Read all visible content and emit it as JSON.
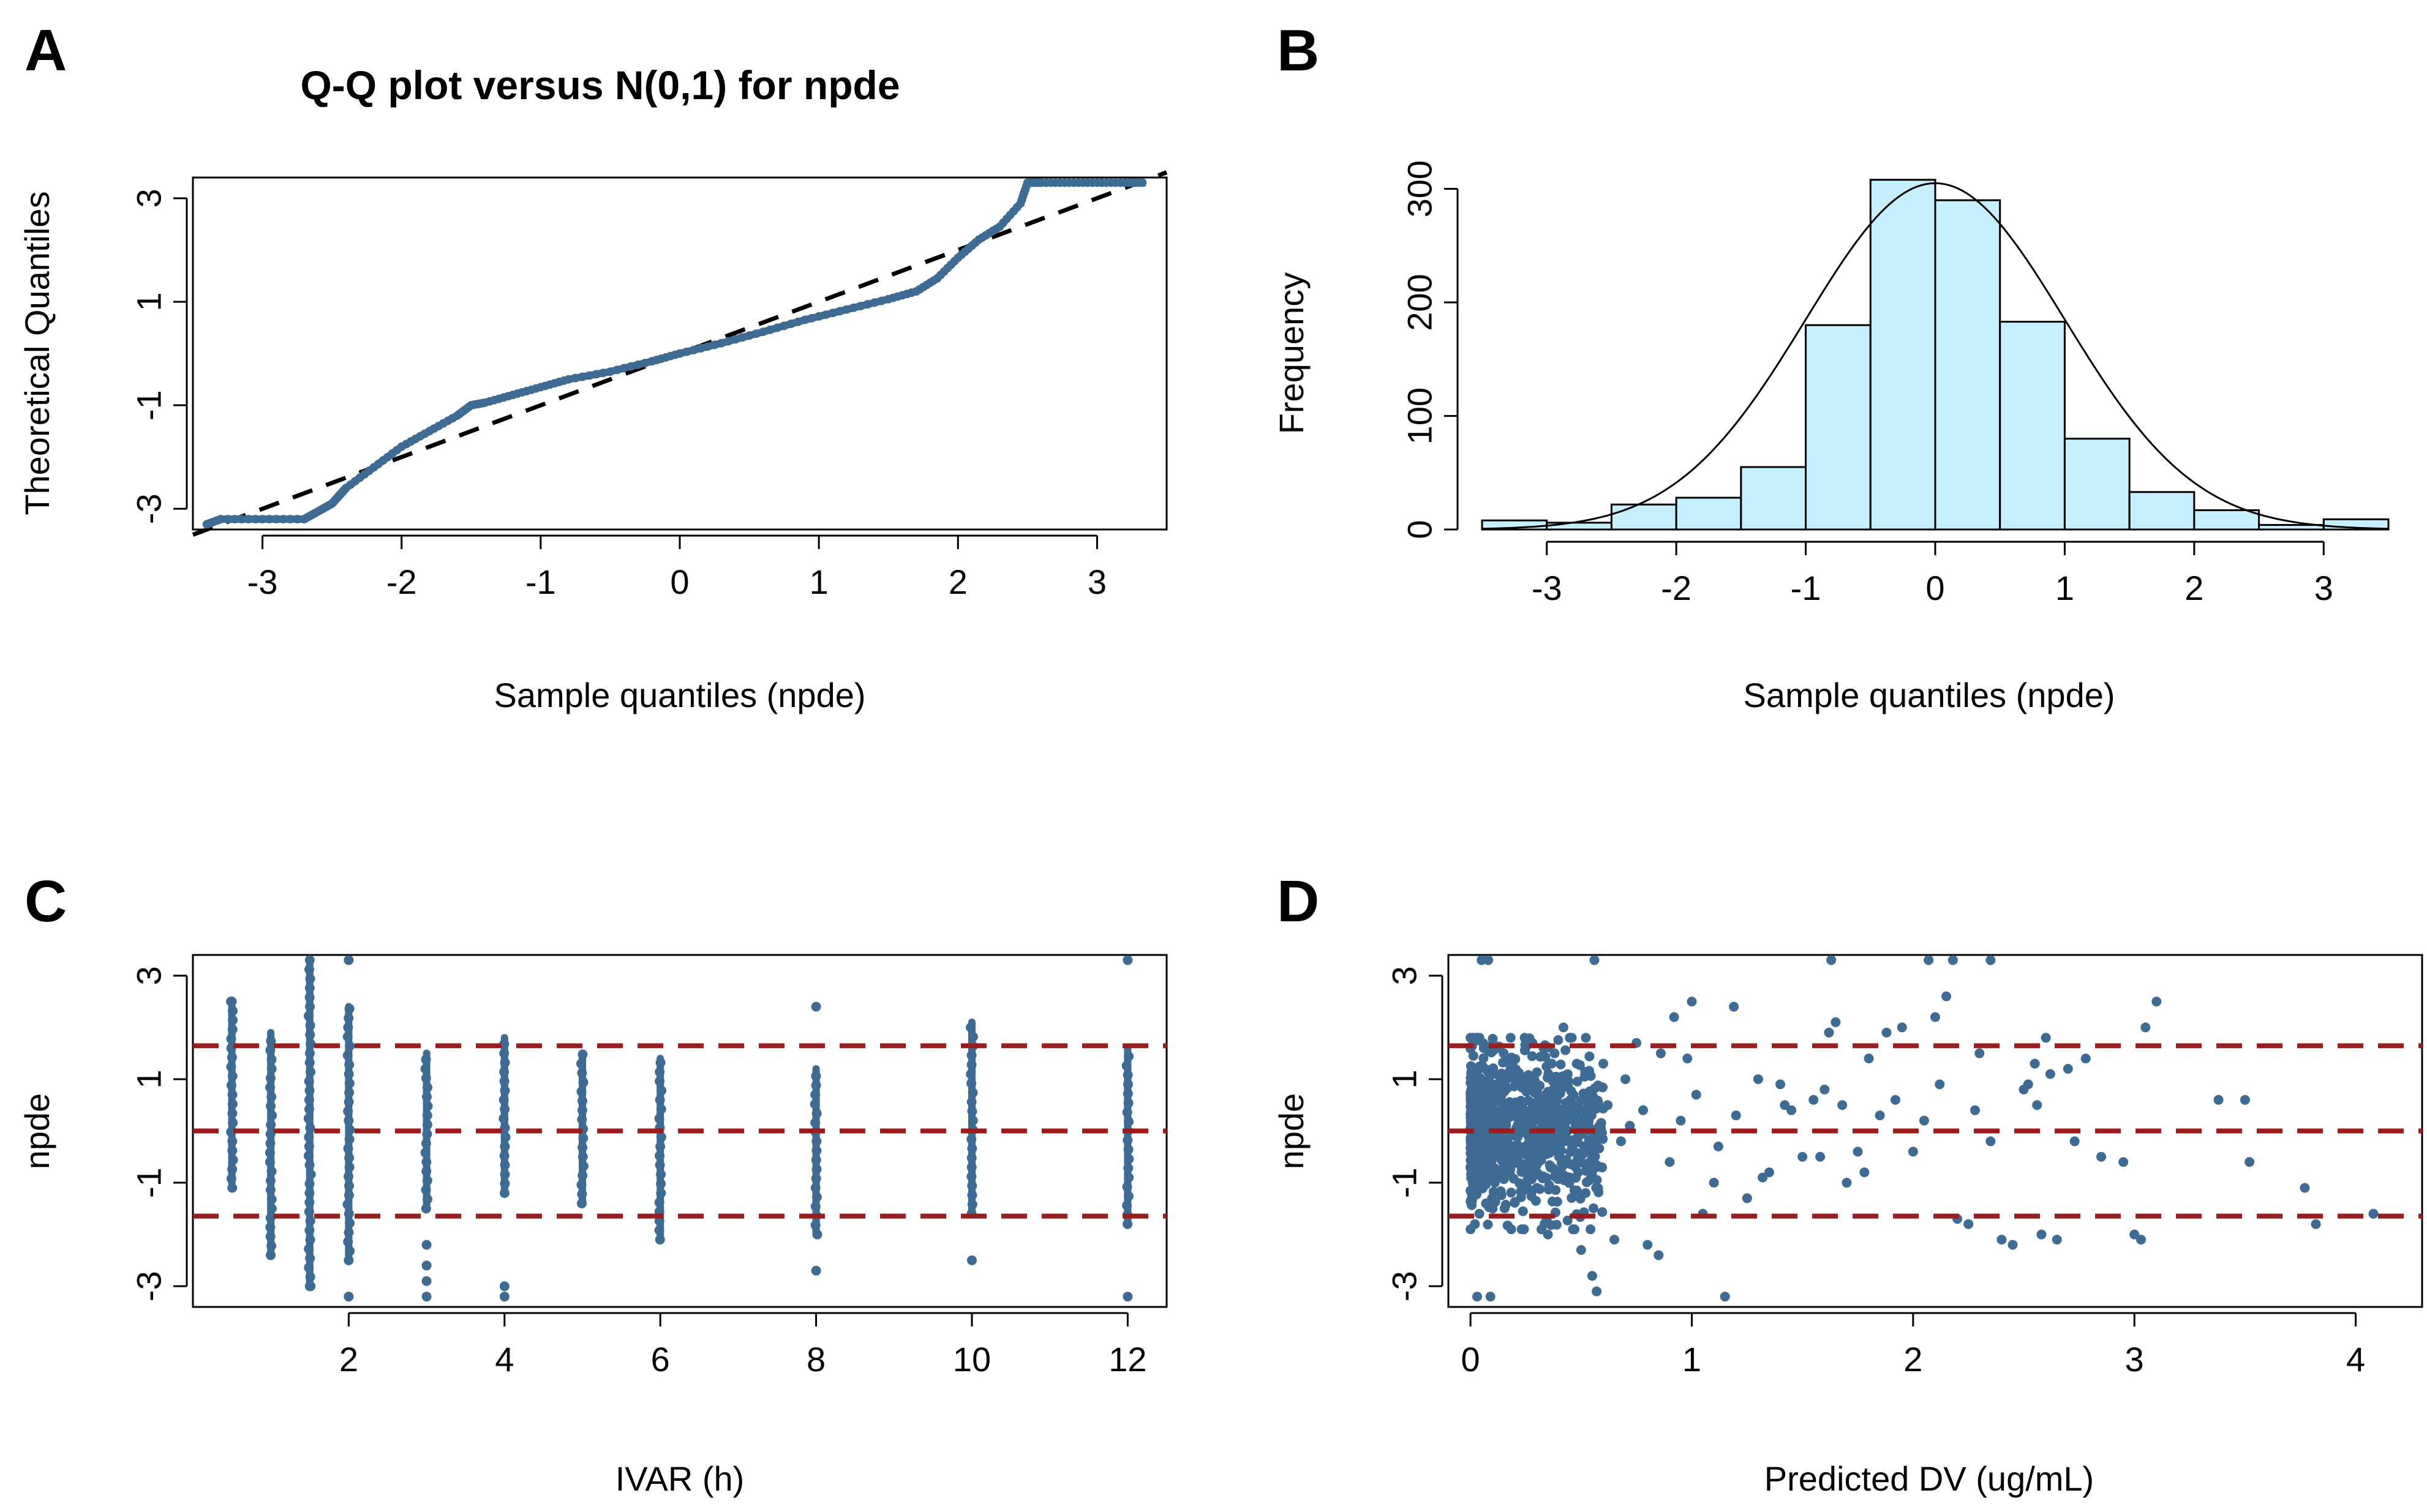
{
  "colors": {
    "points": "#3e6b93",
    "hist_fill": "#c6efff",
    "ref_line": "#9b1c1c",
    "axis": "#000000"
  },
  "chart_data": [
    {
      "id": "A",
      "panel_label": "A",
      "type": "scatter",
      "title": "Q-Q plot versus N(0,1) for  npde",
      "xlabel": "Sample quantiles (npde)",
      "ylabel": "Theoretical Quantiles",
      "xlim": [
        -3.5,
        3.5
      ],
      "ylim": [
        -3.4,
        3.4
      ],
      "xticks": [
        -3,
        -2,
        -1,
        0,
        1,
        2,
        3
      ],
      "yticks": [
        -3,
        -1,
        1,
        3
      ],
      "reference_line": {
        "style": "dashed",
        "from": [
          -3.5,
          -3.5
        ],
        "to": [
          3.5,
          3.5
        ]
      },
      "curve": {
        "x": [
          -3.4,
          -3.3,
          -3.0,
          -2.7,
          -2.6,
          -2.5,
          -2.45,
          -2.4,
          -2.2,
          -2.0,
          -1.8,
          -1.6,
          -1.5,
          -1.4,
          -1.2,
          -1.0,
          -0.8,
          -0.5,
          -0.2,
          0.0,
          0.3,
          0.6,
          0.9,
          1.2,
          1.5,
          1.7,
          1.85,
          2.0,
          2.15,
          2.3,
          2.45,
          2.5,
          2.6,
          2.8,
          3.0,
          3.2,
          3.35
        ],
        "y": [
          -3.3,
          -3.2,
          -3.2,
          -3.2,
          -3.05,
          -2.9,
          -2.75,
          -2.6,
          -2.2,
          -1.8,
          -1.5,
          -1.2,
          -1.0,
          -0.95,
          -0.8,
          -0.65,
          -0.5,
          -0.35,
          -0.15,
          0.0,
          0.2,
          0.42,
          0.65,
          0.85,
          1.05,
          1.2,
          1.45,
          1.85,
          2.2,
          2.45,
          2.9,
          3.3,
          3.3,
          3.3,
          3.3,
          3.3,
          3.3
        ]
      }
    },
    {
      "id": "B",
      "panel_label": "B",
      "type": "bar",
      "title": "",
      "xlabel": "Sample quantiles (npde)",
      "ylabel": "Frequency",
      "xlim": [
        -3.5,
        3.5
      ],
      "ylim": [
        0,
        310
      ],
      "xticks": [
        -3,
        -2,
        -1,
        0,
        1,
        2,
        3
      ],
      "yticks": [
        0,
        100,
        200,
        300
      ],
      "bins": [
        {
          "x0": -3.5,
          "x1": -3.0,
          "count": 8
        },
        {
          "x0": -3.0,
          "x1": -2.5,
          "count": 6
        },
        {
          "x0": -2.5,
          "x1": -2.0,
          "count": 22
        },
        {
          "x0": -2.0,
          "x1": -1.5,
          "count": 28
        },
        {
          "x0": -1.5,
          "x1": -1.0,
          "count": 55
        },
        {
          "x0": -1.0,
          "x1": -0.5,
          "count": 180
        },
        {
          "x0": -0.5,
          "x1": 0.0,
          "count": 308
        },
        {
          "x0": 0.0,
          "x1": 0.5,
          "count": 290
        },
        {
          "x0": 0.5,
          "x1": 1.0,
          "count": 183
        },
        {
          "x0": 1.0,
          "x1": 1.5,
          "count": 80
        },
        {
          "x0": 1.5,
          "x1": 2.0,
          "count": 33
        },
        {
          "x0": 2.0,
          "x1": 2.5,
          "count": 17
        },
        {
          "x0": 2.5,
          "x1": 3.0,
          "count": 4
        },
        {
          "x0": 3.0,
          "x1": 3.5,
          "count": 9
        }
      ],
      "density_curve": {
        "type": "normal",
        "mean": 0,
        "sd": 1,
        "peak": 305
      }
    },
    {
      "id": "C",
      "panel_label": "C",
      "type": "scatter",
      "title": "",
      "xlabel": "IVAR (h)",
      "ylabel": "npde",
      "xlim": [
        0,
        12.5
      ],
      "ylim": [
        -3.4,
        3.4
      ],
      "xticks": [
        2,
        4,
        6,
        8,
        10,
        12
      ],
      "yticks": [
        -3,
        -1,
        1,
        3
      ],
      "hlines": [
        -1.645,
        0,
        1.645
      ],
      "columns": [
        {
          "x": 0.5,
          "min": -1.1,
          "max": 2.5,
          "extra": [
            2.5
          ]
        },
        {
          "x": 1.0,
          "min": -2.4,
          "max": 1.9,
          "extra": []
        },
        {
          "x": 1.5,
          "min": -3.0,
          "max": 3.3,
          "extra": [
            3.3,
            -3.0
          ]
        },
        {
          "x": 2.0,
          "min": -2.5,
          "max": 2.4,
          "extra": [
            3.3,
            -3.2
          ]
        },
        {
          "x": 3.0,
          "min": -1.5,
          "max": 1.5,
          "extra": [
            -2.2,
            -2.6,
            -2.9,
            -3.2
          ]
        },
        {
          "x": 4.0,
          "min": -1.2,
          "max": 1.8,
          "extra": [
            -3.0,
            -3.2
          ]
        },
        {
          "x": 5.0,
          "min": -1.4,
          "max": 1.5,
          "extra": []
        },
        {
          "x": 6.0,
          "min": -2.1,
          "max": 1.4,
          "extra": []
        },
        {
          "x": 8.0,
          "min": -2.0,
          "max": 1.2,
          "extra": [
            2.4,
            -2.7
          ]
        },
        {
          "x": 10.0,
          "min": -1.6,
          "max": 2.1,
          "extra": [
            -2.5
          ]
        },
        {
          "x": 12.0,
          "min": -1.8,
          "max": 1.6,
          "extra": [
            3.3,
            -3.2
          ]
        }
      ]
    },
    {
      "id": "D",
      "panel_label": "D",
      "type": "scatter",
      "title": "",
      "xlabel": "Predicted DV (ug/mL)",
      "ylabel": "npde",
      "xlim": [
        -0.1,
        4.3
      ],
      "ylim": [
        -3.4,
        3.4
      ],
      "xticks": [
        0,
        1,
        2,
        3,
        4
      ],
      "yticks": [
        -3,
        -1,
        1,
        3
      ],
      "hlines": [
        -1.645,
        0,
        1.645
      ],
      "points": {
        "x": [
          0.05,
          0.08,
          0.56,
          1.63,
          2.07,
          2.18,
          2.35,
          1.15,
          0.03,
          0.09,
          1.19,
          2.15,
          3.05,
          3.1,
          3.38,
          3.5,
          3.52,
          3.77,
          3.82,
          4.08,
          2.6,
          2.55,
          2.5,
          2.62,
          2.78,
          2.73,
          2.85,
          2.95,
          3.0,
          3.03,
          1.95,
          1.8,
          1.88,
          2.1,
          2.3,
          1.0,
          0.92,
          0.75,
          0.86,
          0.6,
          0.7,
          0.98,
          1.3,
          1.4,
          1.42,
          1.55,
          1.6,
          1.62,
          1.65,
          1.5,
          1.35,
          1.25,
          1.1,
          1.05,
          0.4,
          0.45,
          0.3,
          0.25,
          0.2,
          0.15,
          0.1,
          0.35,
          0.5,
          0.55,
          0.65,
          0.8,
          0.85,
          1.7,
          1.75,
          2.2,
          2.25,
          2.4,
          2.45,
          2.58,
          2.65,
          0.52,
          0.57,
          0.06,
          0.12,
          0.18,
          0.28,
          0.33,
          0.38,
          0.42,
          0.48,
          0.02,
          0.04,
          0.07,
          0.11,
          0.14,
          0.22,
          0.26,
          0.31,
          0.36,
          0.44,
          0.62,
          0.68,
          0.72,
          0.78,
          0.9,
          0.95,
          1.02,
          1.12,
          1.2,
          1.32,
          1.45,
          1.58,
          1.68,
          1.78,
          1.85,
          1.92,
          2.0,
          2.05,
          2.12,
          2.28,
          2.35,
          2.52,
          2.56,
          2.7
        ],
        "y": [
          3.3,
          3.3,
          3.3,
          3.3,
          3.3,
          3.3,
          3.3,
          -3.2,
          -3.2,
          -3.2,
          2.4,
          2.6,
          2.0,
          2.5,
          0.6,
          0.6,
          -0.6,
          -1.1,
          -1.8,
          -1.6,
          1.8,
          1.3,
          0.8,
          1.1,
          1.4,
          -0.2,
          -0.5,
          -0.6,
          -2.0,
          -2.1,
          2.0,
          1.4,
          1.9,
          2.2,
          1.5,
          2.5,
          2.2,
          1.7,
          1.5,
          1.3,
          1.0,
          1.4,
          1.0,
          0.9,
          0.5,
          0.6,
          0.8,
          1.9,
          2.1,
          -0.5,
          -0.8,
          -1.3,
          -1.0,
          -1.6,
          -0.5,
          -0.9,
          -1.1,
          0.8,
          1.2,
          1.5,
          -1.5,
          -2.0,
          -2.3,
          -2.8,
          -2.1,
          -2.2,
          -2.4,
          -1.0,
          -0.4,
          -1.7,
          -1.8,
          -2.1,
          -2.2,
          -2.0,
          -2.1,
          -1.2,
          -3.1,
          1.6,
          1.6,
          1.4,
          1.7,
          1.6,
          1.5,
          2.0,
          1.3,
          -1.8,
          -1.6,
          -1.4,
          -1.0,
          -0.9,
          -0.6,
          -0.3,
          0.3,
          0.6,
          0.9,
          0.5,
          -0.2,
          0.1,
          0.4,
          -0.6,
          0.2,
          0.7,
          -0.3,
          0.3,
          -0.9,
          0.4,
          -0.5,
          0.5,
          -0.8,
          0.3,
          0.6,
          -0.4,
          0.2,
          0.9,
          0.4,
          -0.2,
          0.9,
          0.5,
          1.2
        ]
      },
      "dense_cluster": {
        "x_range": [
          0.0,
          0.6
        ],
        "y_range": [
          -1.9,
          1.8
        ]
      }
    }
  ]
}
